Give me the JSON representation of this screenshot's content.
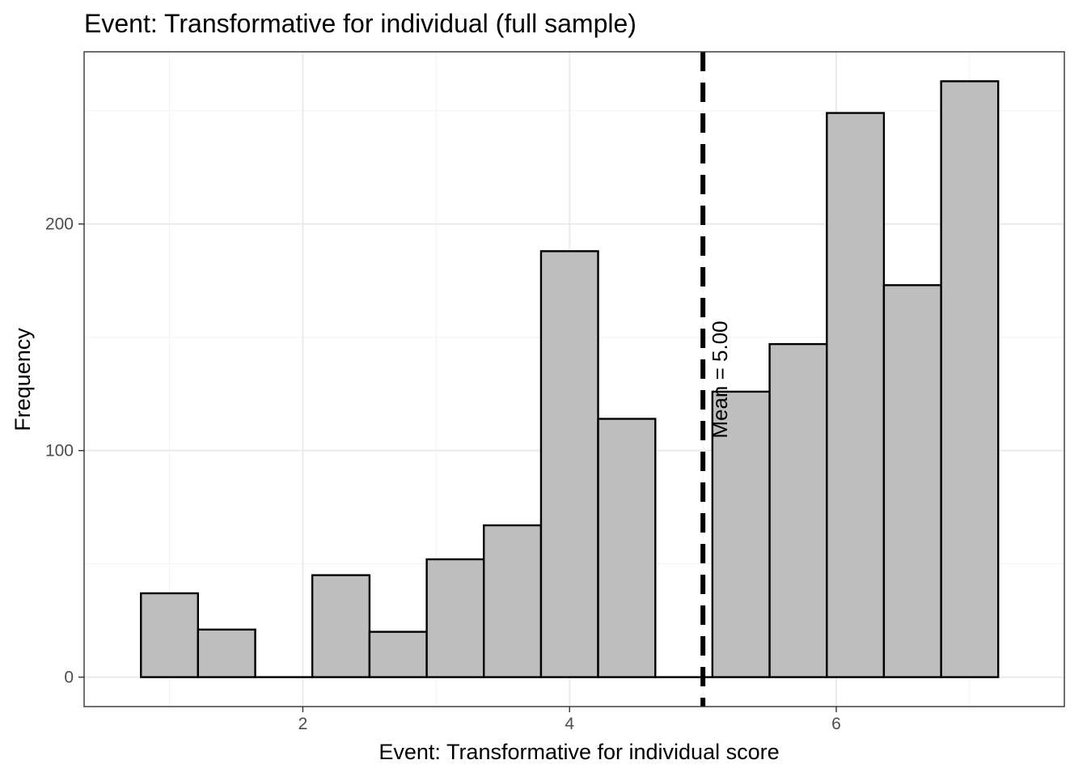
{
  "chart_data": {
    "type": "bar",
    "title": "Event: Transformative for individual (full sample)",
    "xlabel": "Event: Transformative for individual score",
    "ylabel": "Frequency",
    "xlim": [
      0.36,
      7.71
    ],
    "ylim": [
      -13,
      276
    ],
    "x_ticks": [
      2,
      4,
      6
    ],
    "y_ticks": [
      0,
      100,
      200
    ],
    "grid": true,
    "bin_width": 0.4286,
    "bins": [
      {
        "x0": 0.786,
        "x1": 1.214,
        "value": 37
      },
      {
        "x0": 1.214,
        "x1": 1.643,
        "value": 21
      },
      {
        "x0": 1.643,
        "x1": 2.071,
        "value": 0
      },
      {
        "x0": 2.071,
        "x1": 2.5,
        "value": 45
      },
      {
        "x0": 2.5,
        "x1": 2.929,
        "value": 20
      },
      {
        "x0": 2.929,
        "x1": 3.357,
        "value": 52
      },
      {
        "x0": 3.357,
        "x1": 3.786,
        "value": 67
      },
      {
        "x0": 3.786,
        "x1": 4.214,
        "value": 188
      },
      {
        "x0": 4.214,
        "x1": 4.643,
        "value": 114
      },
      {
        "x0": 4.643,
        "x1": 5.071,
        "value": 0
      },
      {
        "x0": 5.071,
        "x1": 5.5,
        "value": 126
      },
      {
        "x0": 5.5,
        "x1": 5.929,
        "value": 147
      },
      {
        "x0": 5.929,
        "x1": 6.357,
        "value": 249
      },
      {
        "x0": 6.357,
        "x1": 6.786,
        "value": 173
      },
      {
        "x0": 6.786,
        "x1": 7.214,
        "value": 263
      }
    ],
    "mean": 5.0,
    "mean_label": "Mean = 5.00",
    "colors": {
      "bar_fill": "#bebebe",
      "bar_stroke": "#000000",
      "grid_major": "#ebebeb",
      "grid_minor": "#f3f3f3",
      "panel_border": "#333333",
      "mean_line": "#000000"
    }
  }
}
